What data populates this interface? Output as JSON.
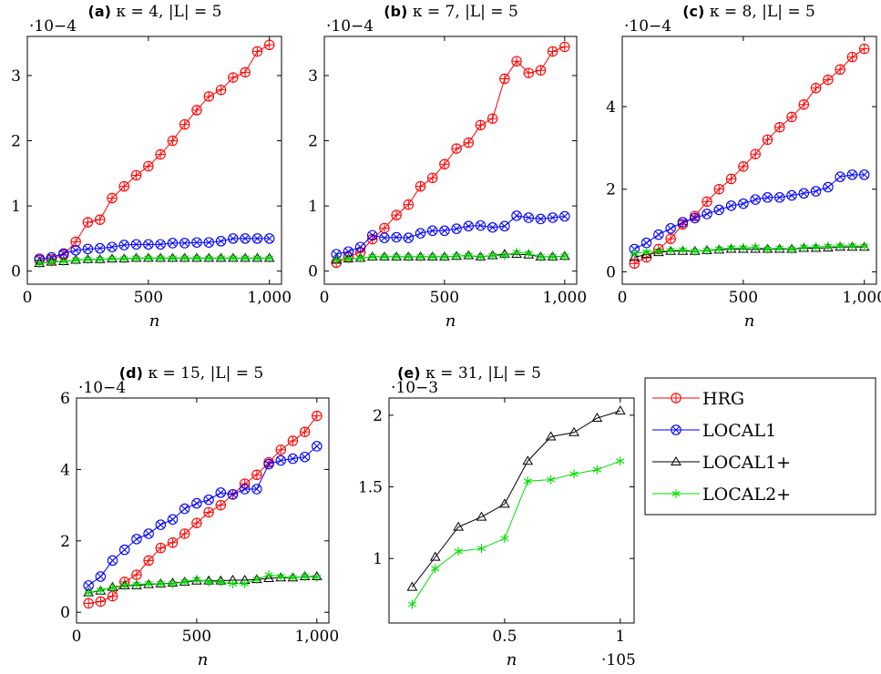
{
  "colors": {
    "HRG": "#ff0000",
    "LOCAL1": "#0000ff",
    "LOCAL1+": "#000000",
    "LOCAL2+": "#00dd00"
  },
  "legend": [
    {
      "name": "HRG",
      "marker": "oplus"
    },
    {
      "name": "LOCAL1",
      "marker": "otimes"
    },
    {
      "name": "LOCAL1+",
      "marker": "triangle"
    },
    {
      "name": "LOCAL2+",
      "marker": "asterisk"
    }
  ],
  "chart_data": [
    {
      "type": "line",
      "label": "(a)",
      "title": "κ = 4, |L| = 5",
      "xlabel": "n",
      "ylabel": "",
      "yscale_label": "·10−4",
      "xlim": [
        0,
        1050
      ],
      "ylim": [
        -0.2,
        3.6
      ],
      "xticks": [
        0,
        500,
        1000
      ],
      "xtick_labels": [
        "0",
        "500",
        "1,000"
      ],
      "yticks": [
        0,
        1,
        2,
        3
      ],
      "ytick_labels": [
        "0",
        "1",
        "2",
        "3"
      ],
      "x": [
        50,
        100,
        150,
        200,
        250,
        300,
        350,
        400,
        450,
        500,
        550,
        600,
        650,
        700,
        750,
        800,
        850,
        900,
        950,
        1000
      ],
      "series": [
        {
          "name": "HRG",
          "values": [
            0.17,
            0.18,
            0.25,
            0.45,
            0.75,
            0.79,
            1.12,
            1.3,
            1.47,
            1.61,
            1.79,
            2.0,
            2.25,
            2.47,
            2.68,
            2.78,
            2.97,
            3.05,
            3.37,
            3.47
          ]
        },
        {
          "name": "LOCAL1",
          "values": [
            0.19,
            0.21,
            0.27,
            0.32,
            0.34,
            0.35,
            0.37,
            0.4,
            0.41,
            0.41,
            0.41,
            0.43,
            0.43,
            0.44,
            0.44,
            0.46,
            0.5,
            0.5,
            0.5,
            0.5
          ]
        },
        {
          "name": "LOCAL1+",
          "values": [
            0.12,
            0.14,
            0.15,
            0.17,
            0.18,
            0.18,
            0.19,
            0.19,
            0.2,
            0.2,
            0.2,
            0.2,
            0.2,
            0.2,
            0.2,
            0.2,
            0.2,
            0.2,
            0.2,
            0.2
          ]
        },
        {
          "name": "LOCAL2+",
          "values": [
            0.12,
            0.14,
            0.15,
            0.17,
            0.18,
            0.18,
            0.19,
            0.19,
            0.2,
            0.2,
            0.2,
            0.2,
            0.2,
            0.2,
            0.2,
            0.2,
            0.2,
            0.2,
            0.2,
            0.2
          ]
        }
      ]
    },
    {
      "type": "line",
      "label": "(b)",
      "title": "κ = 7, |L| = 5",
      "xlabel": "n",
      "ylabel": "",
      "yscale_label": "·10−4",
      "xlim": [
        0,
        1050
      ],
      "ylim": [
        -0.2,
        3.6
      ],
      "xticks": [
        0,
        500,
        1000
      ],
      "xtick_labels": [
        "0",
        "500",
        "1,000"
      ],
      "yticks": [
        0,
        1,
        2,
        3
      ],
      "ytick_labels": [
        "0",
        "1",
        "2",
        "3"
      ],
      "x": [
        50,
        100,
        150,
        200,
        250,
        300,
        350,
        400,
        450,
        500,
        550,
        600,
        650,
        700,
        750,
        800,
        850,
        900,
        950,
        1000
      ],
      "series": [
        {
          "name": "HRG",
          "values": [
            0.13,
            0.22,
            0.29,
            0.49,
            0.66,
            0.86,
            1.02,
            1.3,
            1.43,
            1.64,
            1.88,
            1.97,
            2.24,
            2.34,
            2.95,
            3.22,
            3.04,
            3.08,
            3.37,
            3.44
          ]
        },
        {
          "name": "LOCAL1",
          "values": [
            0.26,
            0.3,
            0.37,
            0.55,
            0.51,
            0.52,
            0.51,
            0.58,
            0.62,
            0.62,
            0.65,
            0.69,
            0.7,
            0.67,
            0.69,
            0.85,
            0.82,
            0.8,
            0.82,
            0.84
          ]
        },
        {
          "name": "LOCAL1+",
          "values": [
            0.17,
            0.19,
            0.2,
            0.22,
            0.22,
            0.22,
            0.22,
            0.22,
            0.22,
            0.22,
            0.23,
            0.24,
            0.22,
            0.24,
            0.26,
            0.26,
            0.25,
            0.22,
            0.22,
            0.23
          ]
        },
        {
          "name": "LOCAL2+",
          "values": [
            0.17,
            0.19,
            0.2,
            0.22,
            0.22,
            0.22,
            0.22,
            0.22,
            0.22,
            0.22,
            0.23,
            0.24,
            0.22,
            0.24,
            0.24,
            0.29,
            0.27,
            0.22,
            0.22,
            0.23
          ]
        }
      ]
    },
    {
      "type": "line",
      "label": "(c)",
      "title": "κ = 8, |L| = 5",
      "xlabel": "n",
      "ylabel": "",
      "yscale_label": "·10−4",
      "xlim": [
        0,
        1050
      ],
      "ylim": [
        -0.3,
        5.7
      ],
      "xticks": [
        0,
        500,
        1000
      ],
      "xtick_labels": [
        "0",
        "500",
        "1,000"
      ],
      "yticks": [
        0,
        2,
        4
      ],
      "ytick_labels": [
        "0",
        "2",
        "4"
      ],
      "x": [
        50,
        100,
        150,
        200,
        250,
        300,
        350,
        400,
        450,
        500,
        550,
        600,
        650,
        700,
        750,
        800,
        850,
        900,
        950,
        1000
      ],
      "series": [
        {
          "name": "HRG",
          "values": [
            0.2,
            0.35,
            0.55,
            0.8,
            1.15,
            1.35,
            1.7,
            2.0,
            2.25,
            2.55,
            2.85,
            3.2,
            3.5,
            3.75,
            4.05,
            4.45,
            4.65,
            4.9,
            5.2,
            5.4
          ]
        },
        {
          "name": "LOCAL1",
          "values": [
            0.55,
            0.7,
            0.9,
            1.05,
            1.2,
            1.3,
            1.4,
            1.5,
            1.6,
            1.65,
            1.75,
            1.8,
            1.8,
            1.85,
            1.9,
            1.95,
            2.05,
            2.3,
            2.35,
            2.35
          ]
        },
        {
          "name": "LOCAL1+",
          "values": [
            0.35,
            0.42,
            0.47,
            0.5,
            0.5,
            0.5,
            0.52,
            0.53,
            0.55,
            0.55,
            0.55,
            0.55,
            0.55,
            0.55,
            0.57,
            0.57,
            0.58,
            0.6,
            0.6,
            0.6
          ]
        },
        {
          "name": "LOCAL2+",
          "values": [
            0.45,
            0.48,
            0.5,
            0.52,
            0.53,
            0.5,
            0.52,
            0.55,
            0.58,
            0.58,
            0.6,
            0.55,
            0.57,
            0.55,
            0.6,
            0.6,
            0.62,
            0.63,
            0.63,
            0.62
          ]
        }
      ]
    },
    {
      "type": "line",
      "label": "(d)",
      "title": "κ = 15, |L| = 5",
      "xlabel": "n",
      "ylabel": "",
      "yscale_label": "·10−4",
      "xlim": [
        0,
        1050
      ],
      "ylim": [
        -0.3,
        6.0
      ],
      "xticks": [
        0,
        500,
        1000
      ],
      "xtick_labels": [
        "0",
        "500",
        "1,000"
      ],
      "yticks": [
        0,
        2,
        4,
        6
      ],
      "ytick_labels": [
        "0",
        "2",
        "4",
        "6"
      ],
      "x": [
        50,
        100,
        150,
        200,
        250,
        300,
        350,
        400,
        450,
        500,
        550,
        600,
        650,
        700,
        750,
        800,
        850,
        900,
        950,
        1000
      ],
      "series": [
        {
          "name": "HRG",
          "values": [
            0.25,
            0.3,
            0.45,
            0.85,
            1.05,
            1.45,
            1.8,
            1.95,
            2.2,
            2.5,
            2.8,
            3.0,
            3.3,
            3.6,
            3.85,
            4.2,
            4.55,
            4.8,
            5.05,
            5.5
          ]
        },
        {
          "name": "LOCAL1",
          "values": [
            0.75,
            1.0,
            1.45,
            1.75,
            2.05,
            2.2,
            2.45,
            2.6,
            2.9,
            3.05,
            3.15,
            3.35,
            3.3,
            3.45,
            3.45,
            4.15,
            4.25,
            4.3,
            4.35,
            4.65
          ]
        },
        {
          "name": "LOCAL1+",
          "values": [
            0.55,
            0.6,
            0.7,
            0.75,
            0.75,
            0.78,
            0.8,
            0.82,
            0.85,
            0.88,
            0.88,
            0.88,
            0.9,
            0.9,
            0.92,
            0.95,
            0.97,
            0.97,
            1.0,
            1.0
          ]
        },
        {
          "name": "LOCAL2+",
          "values": [
            0.55,
            0.62,
            0.68,
            0.75,
            0.78,
            0.8,
            0.8,
            0.8,
            0.85,
            0.92,
            0.85,
            0.85,
            0.8,
            0.8,
            0.92,
            1.05,
            1.0,
            0.97,
            1.0,
            0.98
          ]
        }
      ]
    },
    {
      "type": "line",
      "label": "(e)",
      "title": "κ = 31, |L| = 5",
      "xlabel": "n",
      "ylabel": "",
      "yscale_label": "·10−3",
      "xscale_label": "·105",
      "xlim": [
        0.0,
        1.06
      ],
      "ylim": [
        0.55,
        2.12
      ],
      "xticks": [
        0.5,
        1.0
      ],
      "xtick_labels": [
        "0.5",
        "1"
      ],
      "yticks": [
        1.0,
        1.5,
        2.0
      ],
      "ytick_labels": [
        "1",
        "1.5",
        "2"
      ],
      "x": [
        0.1,
        0.2,
        0.3,
        0.4,
        0.5,
        0.6,
        0.7,
        0.8,
        0.9,
        1.0
      ],
      "series": [
        {
          "name": "LOCAL1+",
          "values": [
            0.8,
            1.01,
            1.22,
            1.29,
            1.38,
            1.68,
            1.85,
            1.88,
            1.98,
            2.03
          ]
        },
        {
          "name": "LOCAL2+",
          "values": [
            0.68,
            0.93,
            1.05,
            1.07,
            1.14,
            1.54,
            1.55,
            1.59,
            1.62,
            1.68
          ]
        }
      ]
    }
  ]
}
